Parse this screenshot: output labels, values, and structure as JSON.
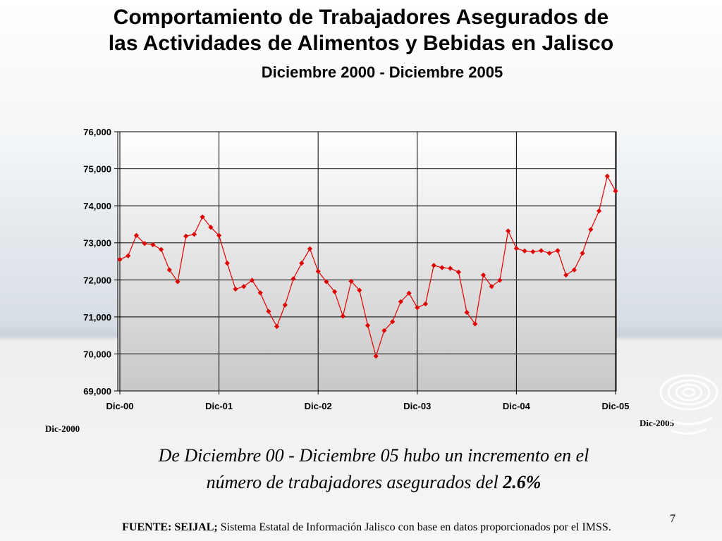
{
  "slide": {
    "title_line1": "Comportamiento de  Trabajadores Asegurados de",
    "title_line2": "las Actividades de Alimentos y Bebidas en Jalisco",
    "subtitle": "Diciembre 2000 - Diciembre 2005",
    "start_label": "Dic-2000",
    "end_label": "Dic-2005",
    "statement_line1": "De Diciembre 00 - Diciembre 05 hubo un incremento en el",
    "statement_line2": "número de trabajadores asegurados del ",
    "statement_value": "2.6%",
    "footer_source_label": "FUENTE: SEIJAL;",
    "footer_text": " Sistema Estatal de Información Jalisco con base en datos proporcionados por el IMSS.",
    "page_number": "7"
  },
  "colors": {
    "series": "#e00000",
    "plot_bg_top": "#ffffff",
    "plot_bg_bottom": "#c8c8c8"
  },
  "chart_data": {
    "type": "line",
    "title": "",
    "xlabel": "",
    "ylabel": "",
    "ylim": [
      69000,
      76000
    ],
    "yticks": [
      69000,
      70000,
      71000,
      72000,
      73000,
      74000,
      75000,
      76000
    ],
    "ytick_labels": [
      "69,000",
      "70,000",
      "71,000",
      "72,000",
      "73,000",
      "74,000",
      "75,000",
      "76,000"
    ],
    "xtick_labels": [
      "Dic-00",
      "Dic-01",
      "Dic-02",
      "Dic-03",
      "Dic-04",
      "Dic-05"
    ],
    "xtick_indices": [
      0,
      12,
      24,
      36,
      48,
      60
    ],
    "grid": true,
    "legend": "none",
    "series": [
      {
        "values": [
          72550,
          72650,
          73200,
          72980,
          72950,
          72820,
          72270,
          71950,
          73180,
          73230,
          73700,
          73420,
          73200,
          72450,
          71750,
          71820,
          71990,
          71650,
          71150,
          70740,
          71320,
          72030,
          72450,
          72840,
          72230,
          71950,
          71680,
          71020,
          71960,
          71720,
          70770,
          69940,
          70630,
          70870,
          71410,
          71640,
          71250,
          71350,
          72390,
          72330,
          72310,
          72210,
          71120,
          70810,
          72130,
          71820,
          71990,
          73320,
          72850,
          72780,
          72760,
          72790,
          72720,
          72790,
          72130,
          72270,
          72720,
          73360,
          73860,
          74800,
          74400
        ]
      }
    ]
  }
}
